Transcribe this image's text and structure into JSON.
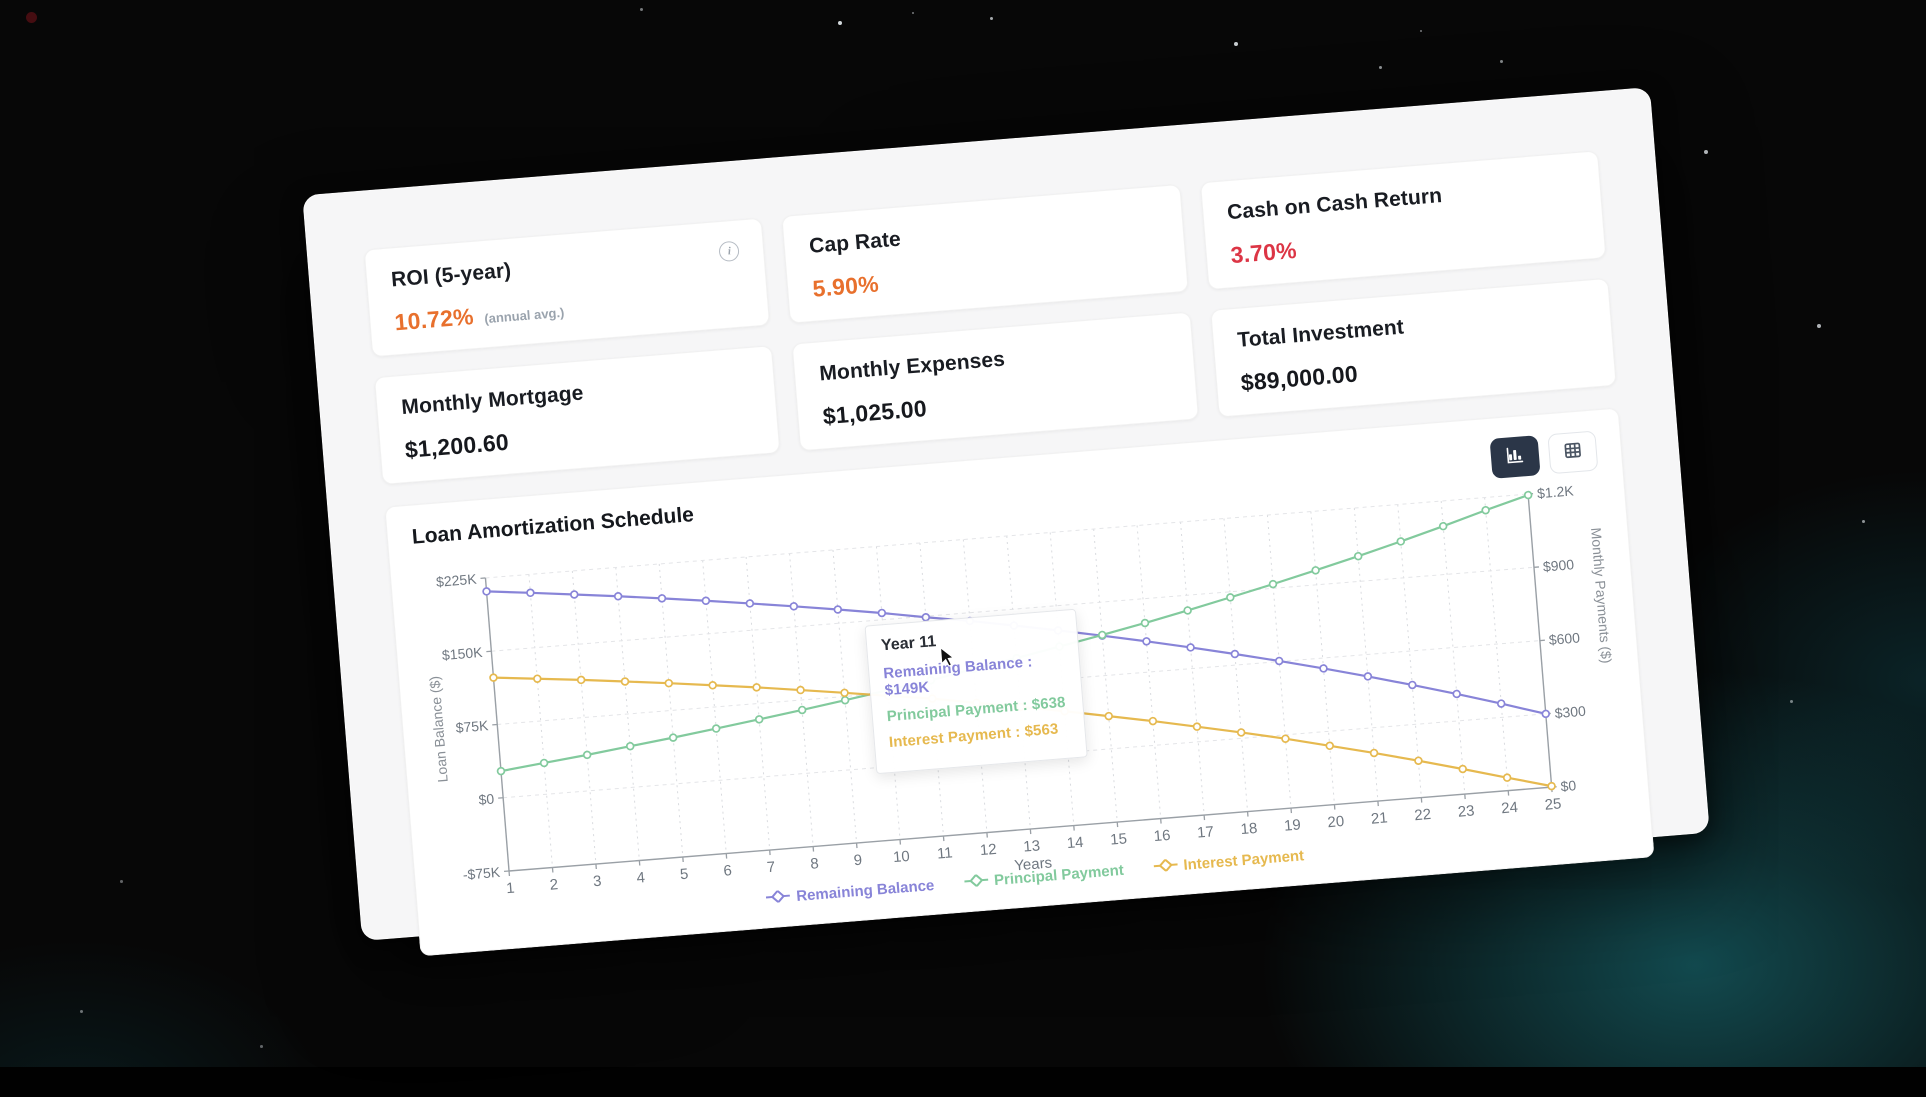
{
  "stats": [
    {
      "label": "ROI (5-year)",
      "value": "10.72%",
      "suffix": "(annual avg.)",
      "color": "#e8702d",
      "info_icon": true
    },
    {
      "label": "Cap Rate",
      "value": "5.90%",
      "suffix": "",
      "color": "#e8702d",
      "info_icon": false
    },
    {
      "label": "Cash on Cash Return",
      "value": "3.70%",
      "suffix": "",
      "color": "#dc3545",
      "info_icon": false
    },
    {
      "label": "Monthly Mortgage",
      "value": "$1,200.60",
      "suffix": "",
      "color": "#16181d",
      "info_icon": false
    },
    {
      "label": "Monthly Expenses",
      "value": "$1,025.00",
      "suffix": "",
      "color": "#16181d",
      "info_icon": false
    },
    {
      "label": "Total Investment",
      "value": "$89,000.00",
      "suffix": "",
      "color": "#16181d",
      "info_icon": false
    }
  ],
  "chart_section": {
    "title": "Loan Amortization Schedule",
    "view_toggles": [
      {
        "name": "chart-view",
        "active": true
      },
      {
        "name": "table-view",
        "active": false
      }
    ]
  },
  "chart_data": {
    "type": "line",
    "x": [
      1,
      2,
      3,
      4,
      5,
      6,
      7,
      8,
      9,
      10,
      11,
      12,
      13,
      14,
      15,
      16,
      17,
      18,
      19,
      20,
      21,
      22,
      23,
      24,
      25
    ],
    "xlabel": "Years",
    "y_left_label": "Loan Balance ($)",
    "y_right_label": "Monthly Payments ($)",
    "y_left_ticks": [
      {
        "v": 225000,
        "label": "$225K"
      },
      {
        "v": 150000,
        "label": "$150K"
      },
      {
        "v": 75000,
        "label": "$75K"
      },
      {
        "v": 0,
        "label": "$0"
      },
      {
        "v": -75000,
        "label": "-$75K"
      }
    ],
    "y_right_ticks": [
      {
        "v": 1200,
        "label": "$1.2K"
      },
      {
        "v": 900,
        "label": "$900"
      },
      {
        "v": 600,
        "label": "$600"
      },
      {
        "v": 300,
        "label": "$300"
      },
      {
        "v": 0,
        "label": "$0"
      }
    ],
    "y_left_range": [
      -75000,
      225000
    ],
    "y_right_range": [
      0,
      1200
    ],
    "grid": true,
    "legend_position": "bottom",
    "series": [
      {
        "name": "Remaining Balance",
        "axis": "left",
        "color": "#8884d8",
        "values": [
          211190,
          206185,
          200951,
          195477,
          189751,
          183762,
          177497,
          170945,
          164092,
          156925,
          149000,
          141587,
          133384,
          124806,
          115833,
          106448,
          96632,
          86364,
          75625,
          64394,
          52646,
          40354,
          27504,
          14061,
          0
        ]
      },
      {
        "name": "Principal Payment",
        "axis": "right",
        "color": "#82ca9d",
        "values": [
          409,
          428,
          447,
          468,
          489,
          512,
          535,
          559,
          585,
          612,
          638,
          670,
          700,
          733,
          766,
          801,
          838,
          877,
          917,
          959,
          1003,
          1049,
          1097,
          1148,
          1196
        ]
      },
      {
        "name": "Interest Payment",
        "axis": "right",
        "color": "#e6b94f",
        "values": [
          792,
          773,
          754,
          733,
          712,
          689,
          666,
          641,
          615,
          588,
          563,
          531,
          500,
          468,
          434,
          399,
          362,
          324,
          284,
          241,
          197,
          151,
          103,
          53,
          4
        ]
      }
    ],
    "tooltip": {
      "title": "Year 11",
      "x": 11,
      "rows": [
        {
          "label": "Remaining Balance",
          "value": "$149K",
          "color": "#8884d8"
        },
        {
          "label": "Principal Payment",
          "value": "$638",
          "color": "#82ca9d"
        },
        {
          "label": "Interest Payment",
          "value": "$563",
          "color": "#e6b94f"
        }
      ]
    }
  }
}
